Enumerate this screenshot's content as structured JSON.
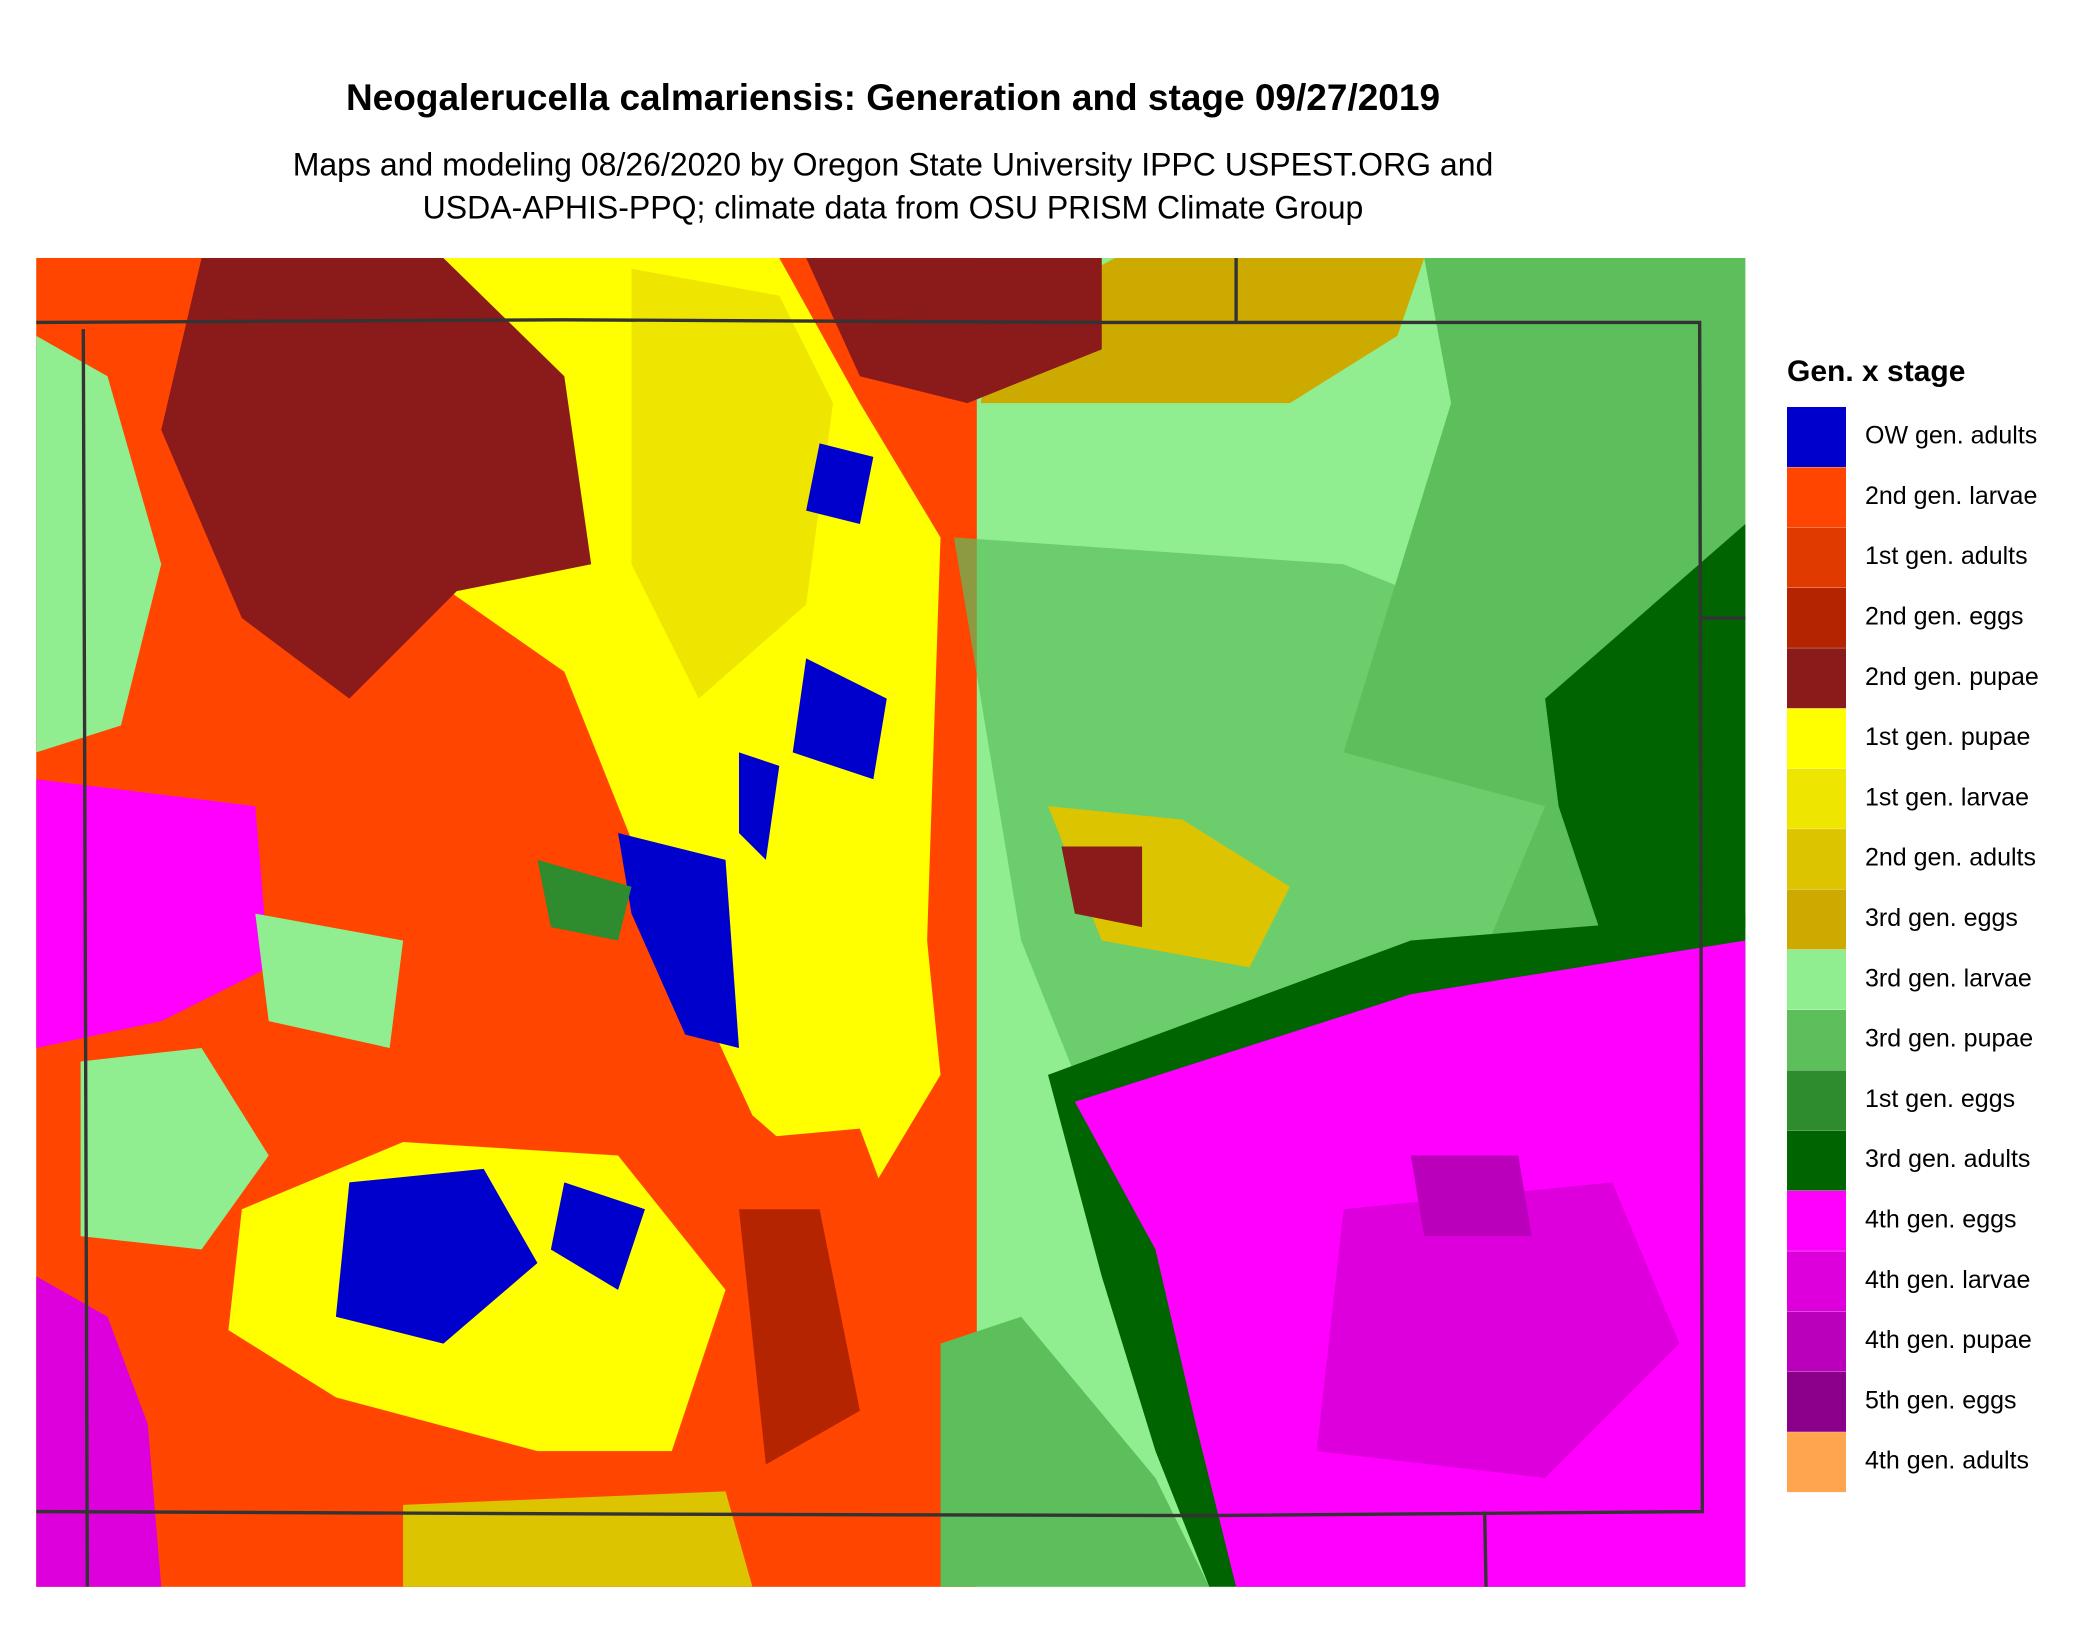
{
  "title": "Neogalerucella calmariensis: Generation and stage 09/27/2019",
  "subtitle": [
    "Maps and modeling 08/26/2020 by Oregon State University IPPC USPEST.ORG and",
    "USDA-APHIS-PPQ; climate data from OSU PRISM Climate Group"
  ],
  "legend": {
    "title": "Gen. x stage",
    "items": [
      {
        "label": "OW gen. adults",
        "color": "#0000cd"
      },
      {
        "label": "2nd gen. larvae",
        "color": "#ff4500"
      },
      {
        "label": "1st gen. adults",
        "color": "#e03a00"
      },
      {
        "label": "2nd gen. eggs",
        "color": "#b42400"
      },
      {
        "label": "2nd gen. pupae",
        "color": "#8b1a1a"
      },
      {
        "label": "1st gen. pupae",
        "color": "#ffff00"
      },
      {
        "label": "1st gen. larvae",
        "color": "#eee600"
      },
      {
        "label": "2nd gen. adults",
        "color": "#ddc400"
      },
      {
        "label": "3rd gen. eggs",
        "color": "#cdaa00"
      },
      {
        "label": "3rd gen. larvae",
        "color": "#90ee90"
      },
      {
        "label": "3rd gen. pupae",
        "color": "#5cbf5c"
      },
      {
        "label": "1st gen. eggs",
        "color": "#2e8b2e"
      },
      {
        "label": "3rd gen. adults",
        "color": "#006400"
      },
      {
        "label": "4th gen. eggs",
        "color": "#ff00ff"
      },
      {
        "label": "4th gen. larvae",
        "color": "#dd00dd"
      },
      {
        "label": "4th gen. pupae",
        "color": "#bb00bb"
      },
      {
        "label": "5th gen. eggs",
        "color": "#8b008b"
      },
      {
        "label": "4th gen. adults",
        "color": "#ffa54f"
      }
    ]
  }
}
